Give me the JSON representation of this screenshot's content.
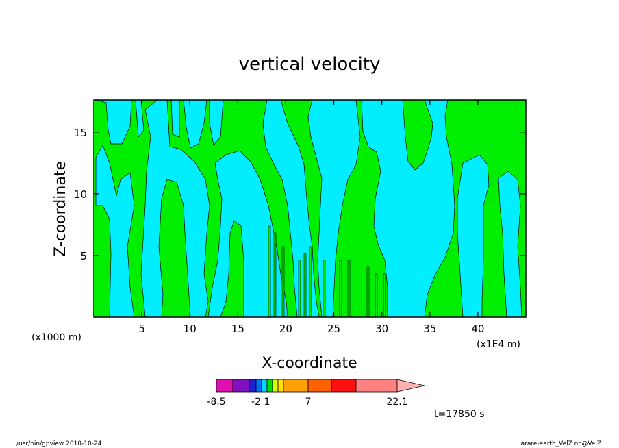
{
  "chart_data": {
    "type": "heatmap",
    "title": "vertical velocity",
    "xlabel": "X-coordinate",
    "ylabel": "Z-coordinate",
    "x_unit_left": "(x1000 m)",
    "x_unit_right": "(x1E4 m)",
    "xlim": [
      0,
      45
    ],
    "ylim": [
      0,
      17.6
    ],
    "xticks": [
      5,
      10,
      15,
      20,
      25,
      30,
      35,
      40
    ],
    "yticks": [
      5,
      10,
      15
    ],
    "time_label": "t=17850 s",
    "colorbar": {
      "colors": [
        "#e010b0",
        "#8010c0",
        "#2020d0",
        "#0070ff",
        "#00d8ff",
        "#00e000",
        "#e0ff00",
        "#ffe000",
        "#ffa000",
        "#ff6000",
        "#ff1010",
        "#ff8080",
        "#ffb0b0"
      ],
      "labels": [
        "-8.5",
        "-2",
        "1",
        "7",
        "22.1"
      ]
    },
    "field_colors": {
      "positive": "#00ee00",
      "negative": "#00eeff"
    }
  },
  "footer": {
    "left": "/usr/bin/gpview   2010-10-24",
    "right": "arare-earth_VelZ.nc@VelZ"
  }
}
